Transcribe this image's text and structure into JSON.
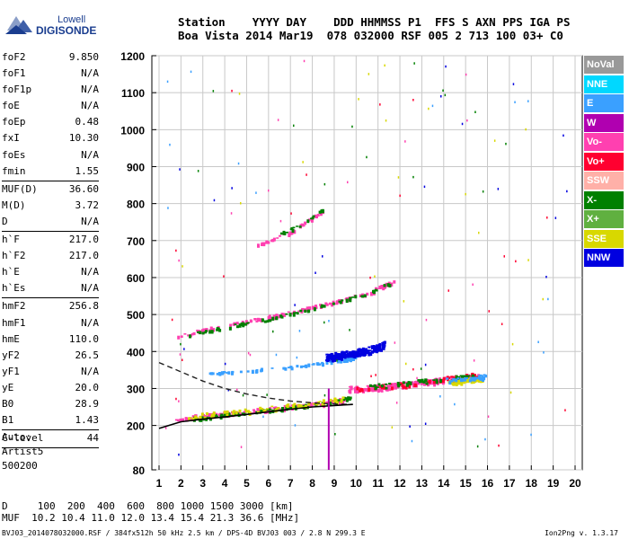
{
  "logo": {
    "line1": "Lowell",
    "line2": "DIGISONDE"
  },
  "header": {
    "row1": "Station    YYYY DAY    DDD HHMMSS P1  FFS S AXN PPS IGA PS",
    "row2": "Boa Vista 2014 Mar19  078 032000 RSF 005 2 713 100 03+ C0"
  },
  "params": {
    "group1": [
      {
        "label": "foF2",
        "value": "9.850"
      },
      {
        "label": "foF1",
        "value": "N/A"
      },
      {
        "label": "foF1p",
        "value": "N/A"
      },
      {
        "label": "foE",
        "value": "N/A"
      },
      {
        "label": "foEp",
        "value": "0.48"
      },
      {
        "label": "fxI",
        "value": "10.30"
      },
      {
        "label": "foEs",
        "value": "N/A"
      },
      {
        "label": "fmin",
        "value": "1.55"
      }
    ],
    "group2": [
      {
        "label": "MUF(D)",
        "value": "36.60"
      },
      {
        "label": "M(D)",
        "value": "3.72"
      },
      {
        "label": "D",
        "value": "N/A"
      }
    ],
    "group3": [
      {
        "label": "h`F",
        "value": "217.0"
      },
      {
        "label": "h`F2",
        "value": "217.0"
      },
      {
        "label": "h`E",
        "value": "N/A"
      },
      {
        "label": "h`Es",
        "value": "N/A"
      }
    ],
    "group4": [
      {
        "label": "hmF2",
        "value": "256.8"
      },
      {
        "label": "hmF1",
        "value": "N/A"
      },
      {
        "label": "hmE",
        "value": "110.0"
      },
      {
        "label": "yF2",
        "value": "26.5"
      },
      {
        "label": "yF1",
        "value": "N/A"
      },
      {
        "label": "yE",
        "value": "20.0"
      },
      {
        "label": "B0",
        "value": "28.9"
      },
      {
        "label": "B1",
        "value": "1.43"
      }
    ],
    "group5": [
      {
        "label": "C-level",
        "value": "44"
      }
    ]
  },
  "auto": {
    "line1": "Auto:",
    "line2": "Artist5",
    "line3": "500200"
  },
  "legend": [
    {
      "label": "NoVal",
      "color": "#999999"
    },
    {
      "label": "NNE",
      "color": "#00d8ff"
    },
    {
      "label": "E",
      "color": "#3aa0ff"
    },
    {
      "label": "W",
      "color": "#b000b0"
    },
    {
      "label": "Vo-",
      "color": "#ff40b0"
    },
    {
      "label": "Vo+",
      "color": "#ff0030"
    },
    {
      "label": "SSW",
      "color": "#ffb0a8"
    },
    {
      "label": "X-",
      "color": "#008000"
    },
    {
      "label": "X+",
      "color": "#60b040"
    },
    {
      "label": "SSE",
      "color": "#d8d800"
    },
    {
      "label": "NNW",
      "color": "#0000e0"
    }
  ],
  "footer": {
    "line1": "D     100  200  400  600  800 1000 1500 3000 [km]",
    "line2": "MUF  10.2 10.4 11.0 12.0 13.4 15.4 21.3 36.6 [MHz]",
    "file": "BVJ03_2014078032000.RSF / 384fx512h 50 kHz 2.5 km / DPS-4D BVJ03 003 / 2.8 N 299.3 E",
    "version": "Ion2Png v. 1.3.17"
  },
  "chart_data": {
    "type": "scatter",
    "xlim": [
      1,
      20
    ],
    "ylim": [
      80,
      1200
    ],
    "x_ticks": [
      1,
      2,
      3,
      4,
      5,
      6,
      7,
      8,
      9,
      10,
      11,
      12,
      13,
      14,
      15,
      16,
      17,
      18,
      19,
      20
    ],
    "y_ticks": [
      80,
      200,
      300,
      400,
      500,
      600,
      700,
      800,
      900,
      1000,
      1100,
      1200
    ],
    "grid": true,
    "legend_position": "right",
    "traces": [
      {
        "name": "Vo-",
        "color": "#ff40b0",
        "points": [
          [
            1.7,
            218
          ],
          [
            3,
            228
          ],
          [
            4.5,
            236
          ],
          [
            6,
            246
          ],
          [
            7.5,
            256
          ],
          [
            9,
            266
          ],
          [
            9.6,
            275
          ]
        ],
        "spread": 10,
        "count": 150
      },
      {
        "name": "X-",
        "color": "#008000",
        "points": [
          [
            2.5,
            220
          ],
          [
            4,
            230
          ],
          [
            5.5,
            240
          ],
          [
            7,
            250
          ],
          [
            8.5,
            262
          ],
          [
            9.8,
            280
          ]
        ],
        "spread": 8,
        "count": 100
      },
      {
        "name": "SSE",
        "color": "#d8d800",
        "points": [
          [
            2,
            225
          ],
          [
            4,
            235
          ],
          [
            6,
            248
          ],
          [
            8,
            262
          ],
          [
            9.5,
            275
          ]
        ],
        "spread": 12,
        "count": 70
      },
      {
        "name": "Vo-",
        "color": "#ff40b0",
        "points": [
          [
            1.7,
            440
          ],
          [
            3,
            460
          ],
          [
            4.5,
            478
          ],
          [
            6,
            495
          ],
          [
            7.5,
            515
          ],
          [
            9,
            535
          ],
          [
            10.5,
            560
          ],
          [
            11.7,
            592
          ]
        ],
        "spread": 8,
        "count": 140
      },
      {
        "name": "X-",
        "color": "#008000",
        "points": [
          [
            2.2,
            445
          ],
          [
            4,
            468
          ],
          [
            6,
            490
          ],
          [
            8,
            520
          ],
          [
            10,
            550
          ],
          [
            11.6,
            588
          ]
        ],
        "spread": 7,
        "count": 70
      },
      {
        "name": "Vo-",
        "color": "#ff40b0",
        "points": [
          [
            5.5,
            690
          ],
          [
            7,
            725
          ],
          [
            8.5,
            785
          ]
        ],
        "spread": 6,
        "count": 40
      },
      {
        "name": "X-",
        "color": "#008000",
        "points": [
          [
            6.5,
            720
          ],
          [
            7.5,
            745
          ],
          [
            8.5,
            790
          ]
        ],
        "spread": 5,
        "count": 18
      },
      {
        "name": "E",
        "color": "#3aa0ff",
        "points": [
          [
            3,
            340
          ],
          [
            5,
            350
          ],
          [
            7,
            360
          ],
          [
            8.5,
            370
          ],
          [
            9.5,
            380
          ],
          [
            10,
            390
          ]
        ],
        "spread": 6,
        "count": 80
      },
      {
        "name": "NNW",
        "color": "#0000e0",
        "points": [
          [
            8.6,
            385
          ],
          [
            9.5,
            395
          ],
          [
            10.5,
            405
          ],
          [
            11.3,
            420
          ]
        ],
        "spread": 18,
        "count": 200
      },
      {
        "name": "Vo-",
        "color": "#ff40b0",
        "points": [
          [
            9.6,
            300
          ],
          [
            11,
            305
          ],
          [
            12.5,
            315
          ],
          [
            14,
            325
          ],
          [
            15.5,
            335
          ]
        ],
        "spread": 14,
        "count": 180
      },
      {
        "name": "Vo+",
        "color": "#ff0030",
        "points": [
          [
            10,
            300
          ],
          [
            12,
            312
          ],
          [
            14,
            328
          ],
          [
            15.5,
            338
          ]
        ],
        "spread": 14,
        "count": 70
      },
      {
        "name": "X-",
        "color": "#008000",
        "points": [
          [
            10.5,
            305
          ],
          [
            12.5,
            318
          ],
          [
            14.5,
            330
          ],
          [
            15.5,
            335
          ]
        ],
        "spread": 12,
        "count": 50
      },
      {
        "name": "SSE",
        "color": "#d8d800",
        "points": [
          [
            14.2,
            318
          ],
          [
            15,
            325
          ],
          [
            15.8,
            330
          ]
        ],
        "spread": 10,
        "count": 60
      },
      {
        "name": "E",
        "color": "#3aa0ff",
        "points": [
          [
            14,
            325
          ],
          [
            15.2,
            330
          ],
          [
            15.9,
            335
          ]
        ],
        "spread": 10,
        "count": 40
      }
    ],
    "profile_solid": [
      [
        1,
        192
      ],
      [
        2,
        210
      ],
      [
        3,
        217
      ],
      [
        4,
        223
      ],
      [
        5,
        230
      ],
      [
        6,
        237
      ],
      [
        7,
        244
      ],
      [
        8,
        250
      ],
      [
        9,
        254
      ],
      [
        9.85,
        256.8
      ]
    ],
    "profile_dashed": [
      [
        1,
        370
      ],
      [
        2,
        345
      ],
      [
        3,
        320
      ],
      [
        4,
        300
      ],
      [
        5,
        285
      ],
      [
        6,
        274
      ],
      [
        7,
        266
      ],
      [
        8,
        261
      ],
      [
        9,
        258
      ],
      [
        9.85,
        256.8
      ]
    ],
    "vertical_marker": {
      "x": 8.75,
      "y_from": 80,
      "y_to": 300,
      "color": "#b000b0"
    }
  }
}
